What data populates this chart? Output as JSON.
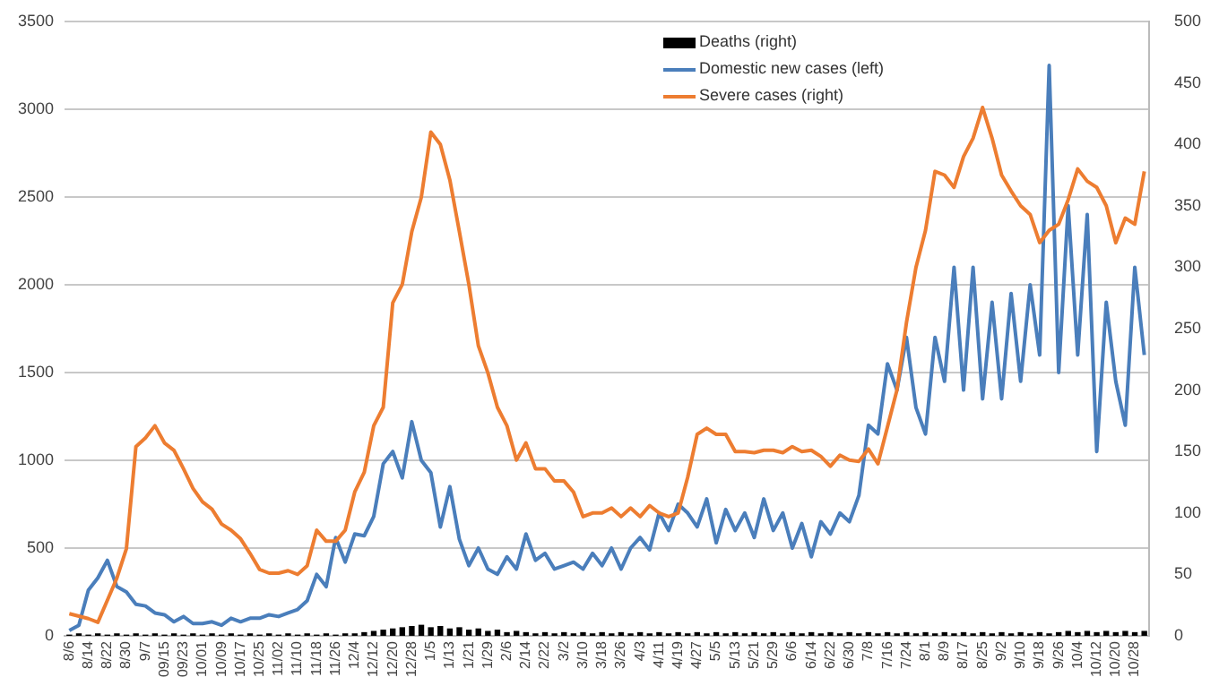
{
  "chart_data": {
    "type": "line",
    "categories": [
      "8/6",
      null,
      "8/14",
      null,
      "8/22",
      null,
      "8/30",
      null,
      "9/7",
      null,
      "09/15",
      null,
      "09/23",
      null,
      "10/01",
      null,
      "10/09",
      null,
      "10/17",
      null,
      "10/25",
      null,
      "11/02",
      null,
      "11/10",
      null,
      "11/18",
      null,
      "11/26",
      null,
      "12/4",
      null,
      "12/12",
      null,
      "12/20",
      null,
      "12/28",
      null,
      "1/5",
      null,
      "1/13",
      null,
      "1/21",
      null,
      "1/29",
      null,
      "2/6",
      null,
      "2/14",
      null,
      "2/22",
      null,
      "3/2",
      null,
      "3/10",
      null,
      "3/18",
      null,
      "3/26",
      null,
      "4/3",
      null,
      "4/11",
      null,
      "4/19",
      null,
      "4/27",
      null,
      "5/5",
      null,
      "5/13",
      null,
      "5/21",
      null,
      "5/29",
      null,
      "6/6",
      null,
      "6/14",
      null,
      "6/22",
      null,
      "6/30",
      null,
      "7/8",
      null,
      "7/16",
      null,
      "7/24",
      null,
      "8/1",
      null,
      "8/9",
      null,
      "8/17",
      null,
      "8/25",
      null,
      "9/2",
      null,
      "9/10",
      null,
      "9/18",
      null,
      "9/26",
      null,
      "10/4",
      null,
      "10/12",
      null,
      "10/20",
      null,
      "10/28",
      null
    ],
    "series": [
      {
        "name": "Deaths (right)",
        "type": "bar",
        "axis": "y2",
        "color": "#000000",
        "values": [
          1,
          2,
          1,
          2,
          1,
          2,
          1,
          2,
          1,
          2,
          1,
          2,
          1,
          2,
          1,
          2,
          1,
          2,
          1,
          2,
          1,
          2,
          1,
          2,
          1,
          2,
          1,
          2,
          1,
          2,
          2,
          3,
          4,
          5,
          6,
          7,
          8,
          9,
          7,
          8,
          6,
          7,
          5,
          6,
          4,
          5,
          3,
          4,
          3,
          2,
          3,
          2,
          3,
          2,
          3,
          2,
          3,
          2,
          3,
          2,
          3,
          2,
          3,
          2,
          3,
          2,
          3,
          2,
          3,
          2,
          3,
          2,
          3,
          2,
          3,
          2,
          3,
          2,
          3,
          2,
          3,
          2,
          3,
          2,
          3,
          2,
          3,
          2,
          3,
          2,
          3,
          2,
          3,
          2,
          3,
          2,
          3,
          2,
          3,
          2,
          3,
          2,
          3,
          2,
          3,
          4,
          3,
          4,
          3,
          4,
          3,
          4,
          3,
          4
        ]
      },
      {
        "name": "Domestic new cases (left)",
        "axis": "y",
        "color": "#4a7ebb",
        "values": [
          30,
          60,
          260,
          330,
          430,
          280,
          250,
          180,
          170,
          130,
          120,
          80,
          110,
          70,
          70,
          80,
          60,
          100,
          80,
          100,
          100,
          120,
          110,
          130,
          150,
          200,
          350,
          280,
          560,
          420,
          580,
          570,
          680,
          980,
          1050,
          900,
          1220,
          1000,
          930,
          620,
          850,
          550,
          400,
          500,
          380,
          350,
          450,
          380,
          580,
          430,
          470,
          380,
          400,
          420,
          380,
          470,
          400,
          500,
          380,
          500,
          560,
          490,
          700,
          600,
          750,
          700,
          620,
          780,
          530,
          720,
          600,
          700,
          560,
          780,
          600,
          700,
          500,
          640,
          450,
          650,
          580,
          700,
          650,
          800,
          1200,
          1150,
          1550,
          1400,
          1700,
          1300,
          1150,
          1700,
          1450,
          2100,
          1400,
          2100,
          1350,
          1900,
          1350,
          1950,
          1450,
          2000,
          1600,
          3250,
          1500,
          2450,
          1600,
          2400,
          1050,
          1900,
          1450,
          1200,
          2100,
          1600
        ]
      },
      {
        "name": "Severe cases (right)",
        "axis": "y2",
        "color": "#ed7d31",
        "values": [
          18,
          16,
          14,
          11,
          29,
          47,
          71,
          154,
          161,
          171,
          157,
          151,
          136,
          120,
          109,
          103,
          91,
          86,
          79,
          67,
          54,
          51,
          51,
          53,
          50,
          57,
          86,
          77,
          77,
          86,
          117,
          133,
          171,
          186,
          271,
          286,
          329,
          357,
          410,
          400,
          371,
          329,
          286,
          236,
          214,
          186,
          171,
          143,
          157,
          136,
          136,
          126,
          126,
          117,
          97,
          100,
          100,
          104,
          97,
          104,
          97,
          106,
          100,
          97,
          100,
          129,
          164,
          169,
          164,
          164,
          150,
          150,
          149,
          151,
          151,
          149,
          154,
          150,
          151,
          146,
          138,
          147,
          143,
          142,
          152,
          140,
          170,
          200,
          255,
          300,
          330,
          378,
          375,
          365,
          390,
          405,
          430,
          405,
          375,
          362,
          350,
          343,
          320,
          330,
          335,
          355,
          380,
          370,
          365,
          350,
          320,
          340,
          335,
          378
        ]
      }
    ],
    "ylim": [
      0,
      3500
    ],
    "yticks": [
      0,
      500,
      1000,
      1500,
      2000,
      2500,
      3000,
      3500
    ],
    "y2lim": [
      0,
      500
    ],
    "y2ticks": [
      0,
      50,
      100,
      150,
      200,
      250,
      300,
      350,
      400,
      450,
      500
    ],
    "grid": "y",
    "legend": "top",
    "marker": "none"
  }
}
